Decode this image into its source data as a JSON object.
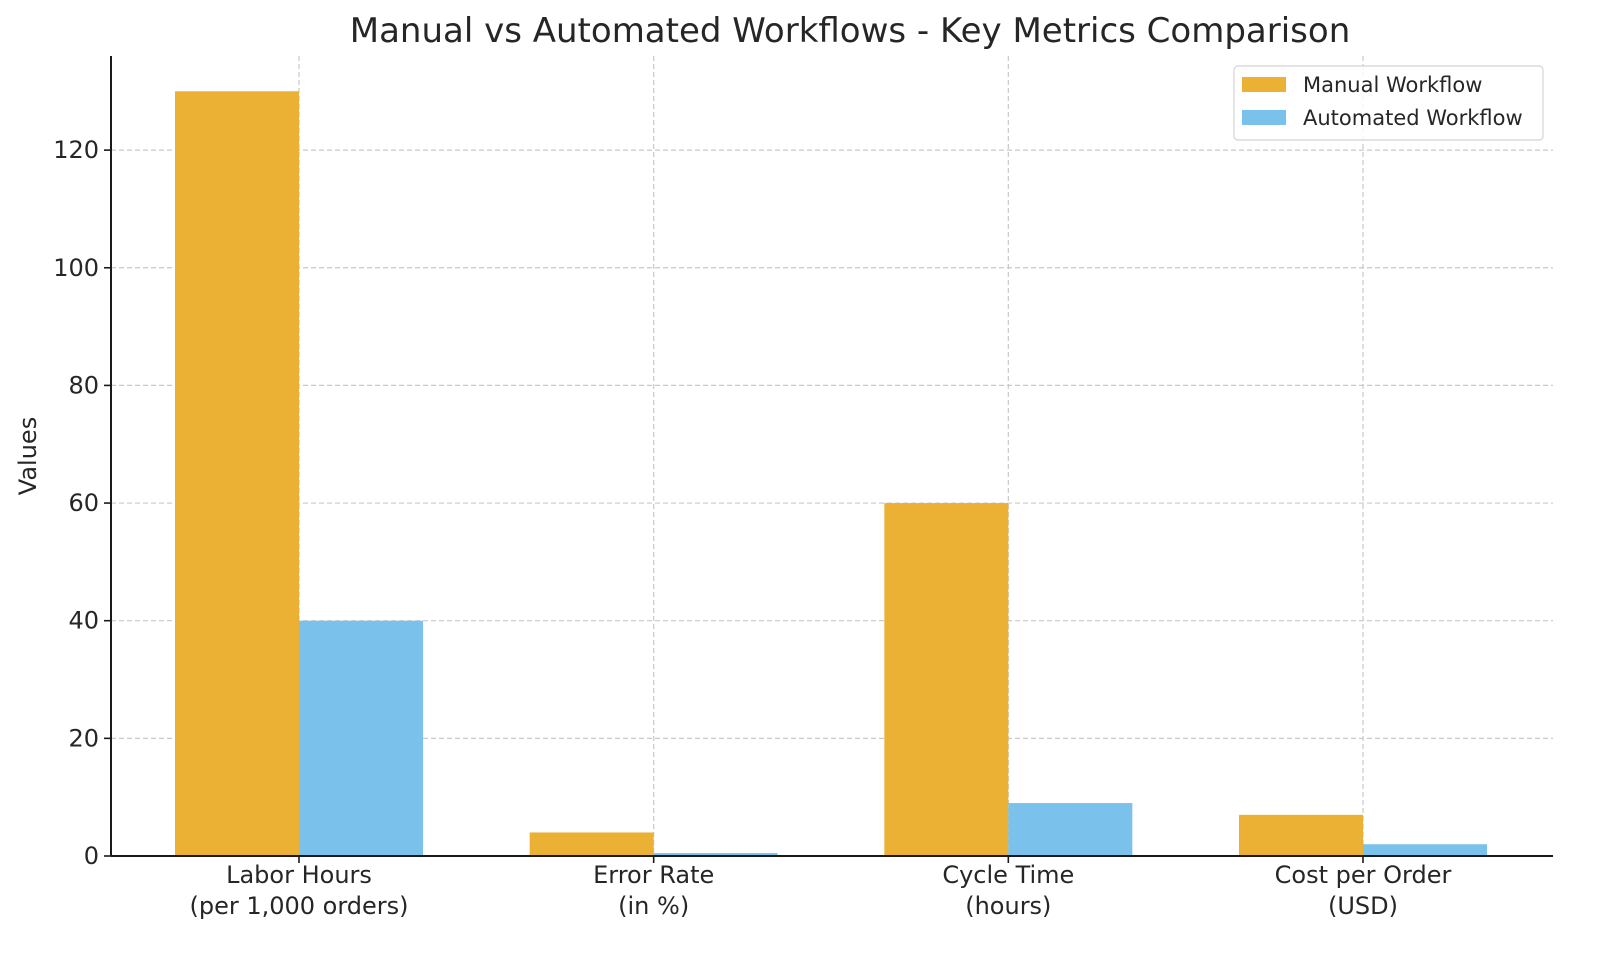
{
  "chart_data": {
    "type": "bar",
    "title": "Manual vs Automated Workflows - Key Metrics Comparison",
    "xlabel": "",
    "ylabel": "Values",
    "categories": [
      [
        "Labor Hours",
        "(per 1,000 orders)"
      ],
      [
        "Error Rate",
        "(in %)"
      ],
      [
        "Cycle Time",
        "(hours)"
      ],
      [
        "Cost per Order",
        "(USD)"
      ]
    ],
    "series": [
      {
        "name": "Manual Workflow",
        "color": "#ebb134",
        "values": [
          130,
          4,
          60,
          7
        ]
      },
      {
        "name": "Automated Workflow",
        "color": "#7ac2eb",
        "values": [
          40,
          0.5,
          9,
          2
        ]
      }
    ],
    "ylim": [
      0,
      136
    ],
    "yticks": [
      "0",
      "20",
      "40",
      "60",
      "80",
      "100",
      "120"
    ],
    "grid": true,
    "legend_position": "top-right"
  }
}
